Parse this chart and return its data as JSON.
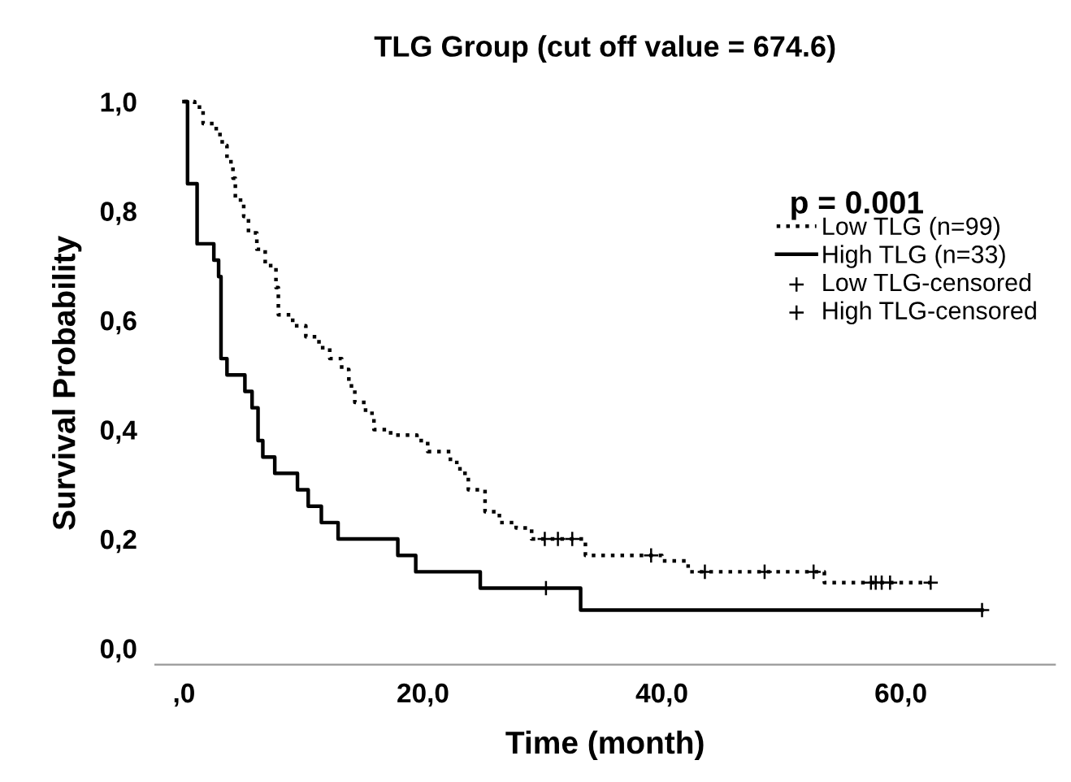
{
  "chart_data": {
    "type": "step",
    "title": "TLG Group (cut off value = 674.6)",
    "xlabel": "Time (month)",
    "ylabel": "Survival Probability",
    "annotations": [
      "p = 0.001"
    ],
    "xlim": [
      -2.4,
      72.9
    ],
    "ylim": [
      -0.03,
      1.0
    ],
    "xticks": [
      {
        "value": 0,
        "label": ",0"
      },
      {
        "value": 20,
        "label": "20,0"
      },
      {
        "value": 40,
        "label": "40,0"
      },
      {
        "value": 60,
        "label": "60,0"
      }
    ],
    "yticks": [
      {
        "value": 0,
        "label": "0,0"
      },
      {
        "value": 0.2,
        "label": "0,2"
      },
      {
        "value": 0.4,
        "label": "0,4"
      },
      {
        "value": 0.6,
        "label": "0,6"
      },
      {
        "value": 0.8,
        "label": "0,8"
      },
      {
        "value": 1.0,
        "label": "1,0"
      }
    ],
    "grid": false,
    "legend": "right",
    "series": [
      {
        "name": "Low TLG (n=99)",
        "color": "#000000",
        "line_style": "dotted",
        "x": [
          0,
          0.9,
          1.6,
          2.7,
          3.2,
          3.6,
          4.1,
          4.3,
          5.0,
          5.4,
          6.1,
          6.8,
          7.7,
          7.9,
          9.1,
          10.2,
          11.3,
          12.2,
          13.2,
          13.8,
          14.3,
          15.2,
          15.9,
          17.3,
          19.5,
          20.4,
          22.3,
          23.1,
          23.8,
          25.2,
          26.4,
          27.8,
          29.1,
          33.6,
          40.0,
          42.2,
          53.6,
          62.5
        ],
        "values": [
          1.0,
          0.99,
          0.96,
          0.94,
          0.92,
          0.89,
          0.86,
          0.82,
          0.79,
          0.76,
          0.73,
          0.7,
          0.66,
          0.61,
          0.59,
          0.57,
          0.55,
          0.53,
          0.51,
          0.48,
          0.45,
          0.43,
          0.4,
          0.39,
          0.38,
          0.36,
          0.34,
          0.32,
          0.29,
          0.25,
          0.23,
          0.22,
          0.2,
          0.17,
          0.16,
          0.14,
          0.12,
          0.12
        ]
      },
      {
        "name": "High TLG (n=33)",
        "color": "#000000",
        "line_style": "solid",
        "x": [
          0,
          0.3,
          1.1,
          2.5,
          2.9,
          3.1,
          3.6,
          5.1,
          5.7,
          6.2,
          6.6,
          7.6,
          9.5,
          10.4,
          11.5,
          12.9,
          17.9,
          19.4,
          24.8,
          33.2,
          66.8
        ],
        "values": [
          1.0,
          0.85,
          0.74,
          0.71,
          0.68,
          0.53,
          0.5,
          0.47,
          0.44,
          0.38,
          0.35,
          0.32,
          0.29,
          0.26,
          0.23,
          0.2,
          0.17,
          0.14,
          0.11,
          0.07,
          0.07
        ]
      },
      {
        "name": "Low TLG-censored",
        "type": "scatter",
        "marker": "cross",
        "color": "#000000",
        "x": [
          30.2,
          31.3,
          32.5,
          39.1,
          43.6,
          48.6,
          52.7,
          57.5,
          57.9,
          58.4,
          59.1,
          62.5
        ],
        "values": [
          0.2,
          0.2,
          0.2,
          0.17,
          0.14,
          0.14,
          0.14,
          0.12,
          0.12,
          0.12,
          0.12,
          0.12
        ]
      },
      {
        "name": "High TLG-censored",
        "type": "scatter",
        "marker": "cross",
        "color": "#000000",
        "x": [
          30.3,
          66.8
        ],
        "values": [
          0.11,
          0.07
        ]
      }
    ]
  }
}
